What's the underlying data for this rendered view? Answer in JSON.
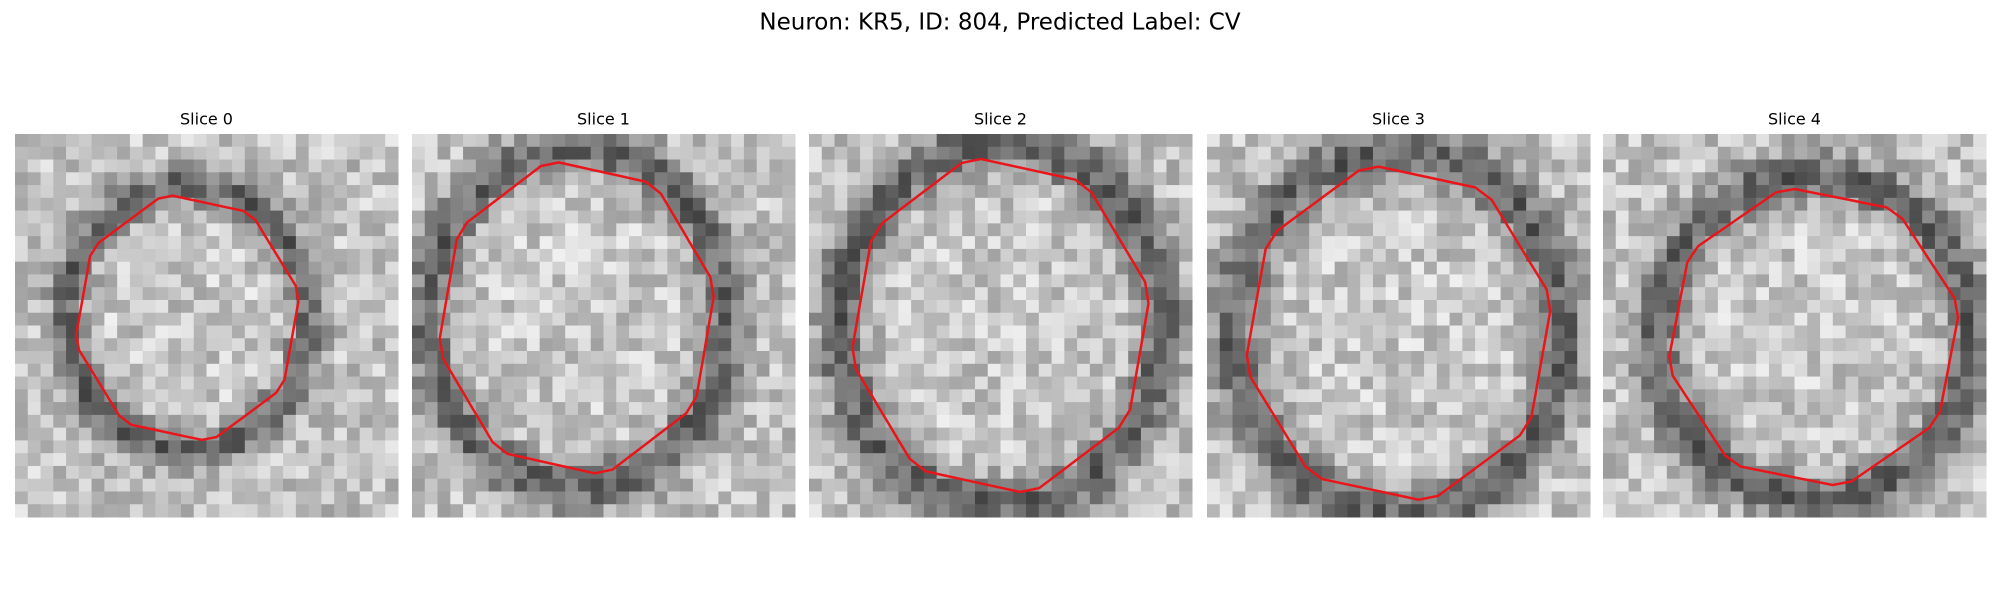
{
  "title": "Neuron: KR5, ID: 804, Predicted Label: CV",
  "panels": [
    {
      "title": "Slice 0"
    },
    {
      "title": "Slice 1"
    },
    {
      "title": "Slice 2"
    },
    {
      "title": "Slice 3"
    },
    {
      "title": "Slice 4"
    }
  ]
}
